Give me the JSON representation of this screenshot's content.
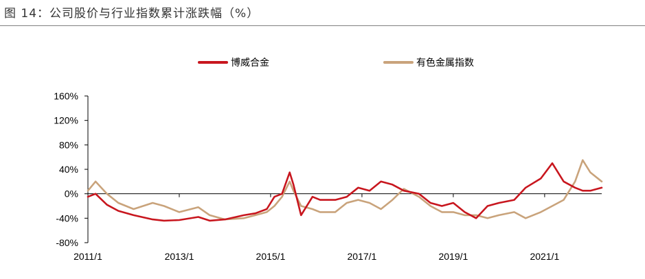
{
  "figure": {
    "title": "图 14：公司股价与行业指数累计涨跌幅（%）"
  },
  "colors": {
    "series_1": "#c8161e",
    "series_2": "#c9a37b",
    "axis": "#000000",
    "rule": "#7f7f7f"
  },
  "chart_data": {
    "type": "line",
    "title": "",
    "xlabel": "",
    "ylabel": "",
    "x_tick_labels": [
      "2011/1",
      "2013/1",
      "2015/1",
      "2017/1",
      "2019/1",
      "2021/1"
    ],
    "y_tick_labels": [
      "160%",
      "120%",
      "80%",
      "40%",
      "0%",
      "-40%",
      "-80%"
    ],
    "ylim": [
      -80,
      160
    ],
    "y_unit": "%",
    "xlim": [
      "2011-01",
      "2022-04"
    ],
    "grid": false,
    "zero_line": true,
    "legend_position": "top",
    "x": [
      "2011-01",
      "2011-03",
      "2011-06",
      "2011-09",
      "2012-01",
      "2012-06",
      "2012-09",
      "2013-01",
      "2013-06",
      "2013-09",
      "2014-01",
      "2014-06",
      "2014-09",
      "2014-12",
      "2015-02",
      "2015-04",
      "2015-06",
      "2015-07",
      "2015-09",
      "2015-12",
      "2016-02",
      "2016-06",
      "2016-09",
      "2016-12",
      "2017-03",
      "2017-06",
      "2017-09",
      "2017-12",
      "2018-04",
      "2018-07",
      "2018-10",
      "2019-01",
      "2019-04",
      "2019-07",
      "2019-10",
      "2020-01",
      "2020-05",
      "2020-08",
      "2020-12",
      "2021-03",
      "2021-06",
      "2021-09",
      "2021-11",
      "2022-01",
      "2022-04"
    ],
    "series": [
      {
        "name": "博威合金",
        "values": [
          -5,
          0,
          -18,
          -28,
          -35,
          -42,
          -44,
          -43,
          -38,
          -44,
          -42,
          -35,
          -32,
          -25,
          -5,
          0,
          35,
          15,
          -35,
          -5,
          -10,
          -10,
          -5,
          10,
          5,
          20,
          15,
          5,
          0,
          -15,
          -20,
          -15,
          -30,
          -40,
          -20,
          -15,
          -10,
          10,
          25,
          50,
          20,
          10,
          5,
          5,
          10
        ]
      },
      {
        "name": "有色金属指数",
        "values": [
          5,
          20,
          0,
          -15,
          -25,
          -15,
          -20,
          -30,
          -22,
          -35,
          -42,
          -40,
          -35,
          -30,
          -20,
          -5,
          20,
          5,
          -20,
          -25,
          -30,
          -30,
          -15,
          -10,
          -15,
          -25,
          -10,
          8,
          -5,
          -20,
          -30,
          -30,
          -35,
          -35,
          -40,
          -35,
          -30,
          -40,
          -30,
          -20,
          -10,
          20,
          55,
          35,
          20
        ]
      }
    ]
  }
}
